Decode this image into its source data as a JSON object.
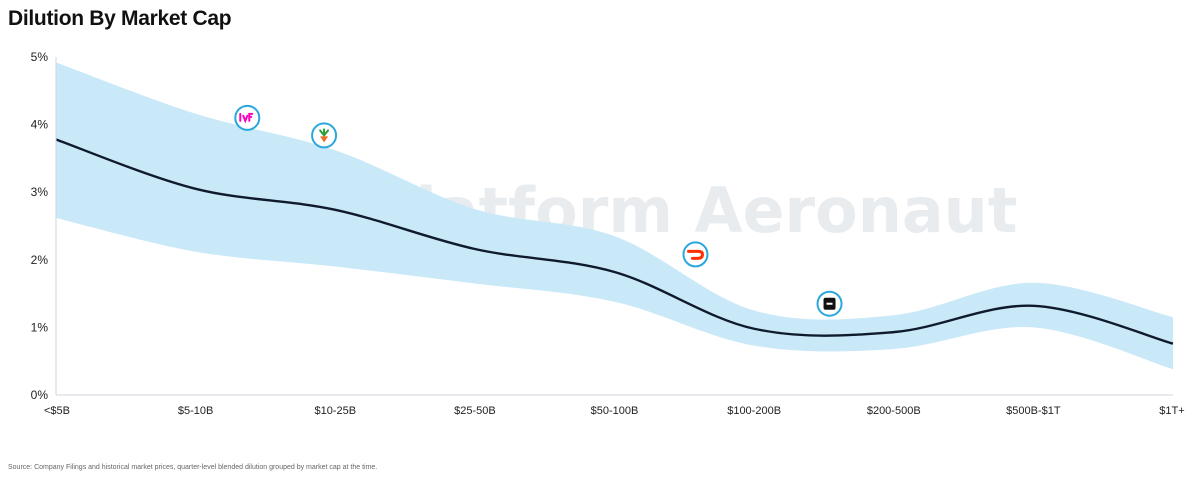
{
  "title": "Dilution By Market Cap",
  "watermark": "Platform Aeronaut",
  "source": "Source: Company Filings and historical market prices, quarter-level blended dilution grouped by market cap at the time.",
  "colors": {
    "line": "#0f1b2d",
    "band": "#c9e8f8",
    "marker_ring": "#2aa8dd",
    "axis": "#cfd6dc"
  },
  "chart_data": {
    "type": "line",
    "title": "Dilution By Market Cap",
    "xlabel": "",
    "ylabel": "",
    "categories": [
      "<$5B",
      "$5-10B",
      "$10-25B",
      "$25-50B",
      "$50-100B",
      "$100-200B",
      "$200-500B",
      "$500B-$1T",
      "$1T+"
    ],
    "yticks": [
      "0%",
      "1%",
      "2%",
      "3%",
      "4%",
      "5%"
    ],
    "ylim": [
      0,
      5
    ],
    "grid": false,
    "series": [
      {
        "values": [
          3.78,
          3.05,
          2.74,
          2.16,
          1.82,
          0.98,
          0.93,
          1.32,
          0.76
        ]
      }
    ],
    "band_upper": [
      4.92,
      4.16,
      3.62,
      2.75,
      2.35,
      1.25,
      1.18,
      1.66,
      1.15
    ],
    "band_lower": [
      2.62,
      2.12,
      1.9,
      1.65,
      1.38,
      0.73,
      0.68,
      1.0,
      0.38
    ],
    "markers": [
      {
        "icon": "lyft-logo-icon",
        "x": 1.37,
        "y": 4.1,
        "color": "#ff00bf"
      },
      {
        "icon": "carrot-logo-icon",
        "x": 1.92,
        "y": 3.84,
        "color": "#f26b1d"
      },
      {
        "icon": "doordash-logo-icon",
        "x": 4.58,
        "y": 2.08,
        "color": "#ff3008"
      },
      {
        "icon": "square-logo-icon",
        "x": 5.54,
        "y": 1.35,
        "color": "#111111"
      }
    ]
  }
}
